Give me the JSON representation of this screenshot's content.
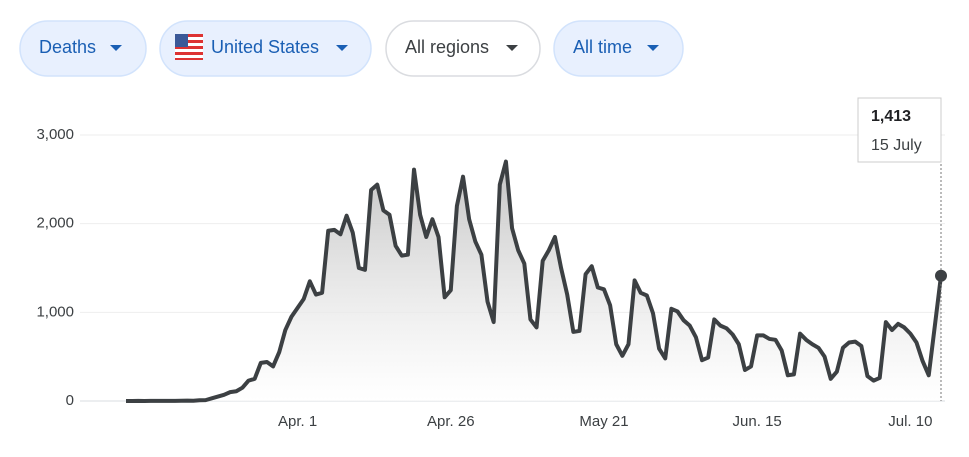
{
  "filters": [
    {
      "label": "Deaths"
    },
    {
      "label": "United States"
    },
    {
      "label": "All regions"
    },
    {
      "label": "All time"
    }
  ],
  "chart_data": {
    "type": "line",
    "color": "#3c4043",
    "categories": [
      null,
      null,
      null,
      null,
      null,
      null,
      null,
      null,
      null,
      null,
      null,
      null,
      null,
      null,
      null,
      null,
      null,
      null,
      null,
      null,
      null,
      null,
      null,
      null,
      null,
      null,
      null,
      null,
      "Apr. 1",
      null,
      null,
      null,
      null,
      null,
      null,
      null,
      null,
      null,
      null,
      null,
      null,
      null,
      null,
      null,
      null,
      null,
      null,
      null,
      null,
      null,
      null,
      null,
      null,
      "Apr. 26",
      null,
      null,
      null,
      null,
      null,
      null,
      null,
      null,
      null,
      null,
      null,
      null,
      null,
      null,
      null,
      null,
      null,
      null,
      null,
      null,
      null,
      null,
      null,
      null,
      "May 21",
      null,
      null,
      null,
      null,
      null,
      null,
      null,
      null,
      null,
      null,
      null,
      null,
      null,
      null,
      null,
      null,
      null,
      null,
      null,
      null,
      null,
      null,
      null,
      null,
      "Jun. 15",
      null,
      null,
      null,
      null,
      null,
      null,
      null,
      null,
      null,
      null,
      null,
      null,
      null,
      null,
      null,
      null,
      null,
      null,
      null,
      null,
      null,
      null,
      null,
      null,
      "Jul. 10",
      null,
      null,
      null,
      null,
      null
    ],
    "values": [
      0,
      0,
      1,
      0,
      1,
      1,
      1,
      2,
      2,
      3,
      4,
      3,
      8,
      10,
      30,
      50,
      70,
      100,
      110,
      150,
      230,
      250,
      430,
      440,
      390,
      550,
      800,
      950,
      1050,
      1150,
      1350,
      1200,
      1220,
      1920,
      1930,
      1880,
      2090,
      1900,
      1500,
      1480,
      2380,
      2440,
      2150,
      2100,
      1750,
      1640,
      1650,
      2610,
      2100,
      1850,
      2050,
      1850,
      1170,
      1250,
      2200,
      2530,
      2050,
      1800,
      1650,
      1120,
      890,
      2440,
      2700,
      1950,
      1700,
      1550,
      920,
      830,
      1580,
      1700,
      1850,
      1500,
      1200,
      780,
      790,
      1430,
      1520,
      1280,
      1260,
      1080,
      640,
      510,
      640,
      1360,
      1220,
      1190,
      990,
      590,
      480,
      1040,
      1010,
      910,
      850,
      720,
      460,
      490,
      920,
      850,
      820,
      750,
      640,
      350,
      390,
      740,
      740,
      700,
      690,
      570,
      290,
      300,
      760,
      690,
      640,
      600,
      500,
      250,
      330,
      600,
      660,
      670,
      620,
      280,
      230,
      260,
      890,
      800,
      870,
      830,
      760,
      660,
      450,
      290,
      850,
      1413
    ],
    "value_labels": [
      null,
      null,
      null,
      null,
      null,
      null,
      null,
      null,
      null,
      null,
      null,
      null,
      null,
      null,
      null,
      null,
      null,
      null,
      null,
      null,
      null,
      null,
      null,
      null,
      null,
      null,
      null,
      null,
      null,
      null,
      null,
      null,
      null,
      null,
      null,
      null,
      null,
      null,
      null,
      null,
      null,
      null,
      null,
      null,
      null,
      null,
      null,
      null,
      null,
      null,
      null,
      null,
      null,
      null,
      null,
      null,
      null,
      null,
      null,
      null,
      null,
      null,
      null,
      null,
      null,
      null,
      null,
      null,
      null,
      null,
      null,
      null,
      null,
      null,
      null,
      null,
      null,
      null,
      null,
      null,
      null,
      null,
      null,
      null,
      null,
      null,
      null,
      null,
      null,
      null,
      null,
      null,
      null,
      null,
      null,
      null,
      null,
      null,
      null,
      null,
      null,
      null,
      null,
      null,
      null,
      null,
      null,
      null,
      null,
      null,
      null,
      null,
      null,
      null,
      null,
      null,
      null,
      null,
      null,
      null,
      null,
      null,
      null,
      null,
      null,
      null,
      null,
      null,
      null,
      null,
      null,
      null,
      null,
      "1,413"
    ],
    "tooltip_date": "15 July",
    "ylim": [
      0,
      3000
    ],
    "yticks": [
      0,
      {
        "value": 1000,
        "label": "1,000"
      },
      {
        "value": 2000,
        "label": "2,000"
      },
      {
        "value": 3000,
        "label": "3,000"
      }
    ],
    "grid": true
  }
}
